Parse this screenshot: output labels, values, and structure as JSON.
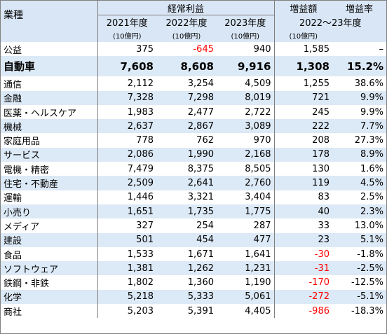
{
  "header": {
    "industry_label": "業種",
    "group_profit": "経常利益",
    "increase_amount": "増益額",
    "increase_rate": "増益率",
    "year_2021": "2021年度",
    "year_2022": "2022年度",
    "year_2023": "2023年度",
    "period_range": "2022～23年度",
    "unit_1": "(10億円)",
    "unit_2": "(10億円)",
    "unit_3": "(10億円)",
    "unit_4": "(10億円)"
  },
  "rows": [
    {
      "name": "公益",
      "y2021": "375",
      "y2022": "-645",
      "y2023": "940",
      "diff": "1,585",
      "rate": "–",
      "y2022_neg": true,
      "diff_neg": false,
      "shade": false,
      "bold": false
    },
    {
      "name": "自動車",
      "y2021": "7,608",
      "y2022": "8,608",
      "y2023": "9,916",
      "diff": "1,308",
      "rate": "15.2%",
      "y2022_neg": false,
      "diff_neg": false,
      "shade": true,
      "bold": true
    },
    {
      "name": "通信",
      "y2021": "2,112",
      "y2022": "3,254",
      "y2023": "4,509",
      "diff": "1,255",
      "rate": "38.6%",
      "shade": false
    },
    {
      "name": "金融",
      "y2021": "7,328",
      "y2022": "7,298",
      "y2023": "8,019",
      "diff": "721",
      "rate": "9.9%",
      "shade": true
    },
    {
      "name": "医薬・ヘルスケア",
      "y2021": "1,983",
      "y2022": "2,477",
      "y2023": "2,722",
      "diff": "245",
      "rate": "9.9%",
      "shade": false
    },
    {
      "name": "機械",
      "y2021": "2,637",
      "y2022": "2,867",
      "y2023": "3,089",
      "diff": "222",
      "rate": "7.7%",
      "shade": true
    },
    {
      "name": "家庭用品",
      "y2021": "778",
      "y2022": "762",
      "y2023": "970",
      "diff": "208",
      "rate": "27.3%",
      "shade": false
    },
    {
      "name": "サービス",
      "y2021": "2,086",
      "y2022": "1,990",
      "y2023": "2,168",
      "diff": "178",
      "rate": "8.9%",
      "shade": true
    },
    {
      "name": "電機・精密",
      "y2021": "7,479",
      "y2022": "8,375",
      "y2023": "8,505",
      "diff": "130",
      "rate": "1.6%",
      "shade": false
    },
    {
      "name": "住宅・不動産",
      "y2021": "2,509",
      "y2022": "2,641",
      "y2023": "2,760",
      "diff": "119",
      "rate": "4.5%",
      "shade": true
    },
    {
      "name": "運輸",
      "y2021": "1,446",
      "y2022": "3,321",
      "y2023": "3,404",
      "diff": "83",
      "rate": "2.5%",
      "shade": false
    },
    {
      "name": "小売り",
      "y2021": "1,651",
      "y2022": "1,735",
      "y2023": "1,775",
      "diff": "40",
      "rate": "2.3%",
      "shade": true
    },
    {
      "name": "メディア",
      "y2021": "327",
      "y2022": "254",
      "y2023": "287",
      "diff": "33",
      "rate": "13.0%",
      "shade": false
    },
    {
      "name": "建設",
      "y2021": "501",
      "y2022": "454",
      "y2023": "477",
      "diff": "23",
      "rate": "5.1%",
      "shade": true
    },
    {
      "name": "食品",
      "y2021": "1,533",
      "y2022": "1,671",
      "y2023": "1,641",
      "diff": "-30",
      "rate": "-1.8%",
      "diff_neg": true,
      "shade": false
    },
    {
      "name": "ソフトウェア",
      "y2021": "1,381",
      "y2022": "1,262",
      "y2023": "1,231",
      "diff": "-31",
      "rate": "-2.5%",
      "diff_neg": true,
      "shade": true
    },
    {
      "name": "鉄鋼・非鉄",
      "y2021": "1,802",
      "y2022": "1,360",
      "y2023": "1,190",
      "diff": "-170",
      "rate": "-12.5%",
      "diff_neg": true,
      "shade": false
    },
    {
      "name": "化学",
      "y2021": "5,218",
      "y2022": "5,333",
      "y2023": "5,061",
      "diff": "-272",
      "rate": "-5.1%",
      "diff_neg": true,
      "shade": true
    },
    {
      "name": "商社",
      "y2021": "5,203",
      "y2022": "5,391",
      "y2023": "4,405",
      "diff": "-986",
      "rate": "-18.3%",
      "diff_neg": true,
      "shade": false
    }
  ],
  "colors": {
    "header_bg": "#d9e6f5",
    "shade_bg": "#dce9f6",
    "negative": "#ff0000",
    "border": "#7f7f7f"
  }
}
